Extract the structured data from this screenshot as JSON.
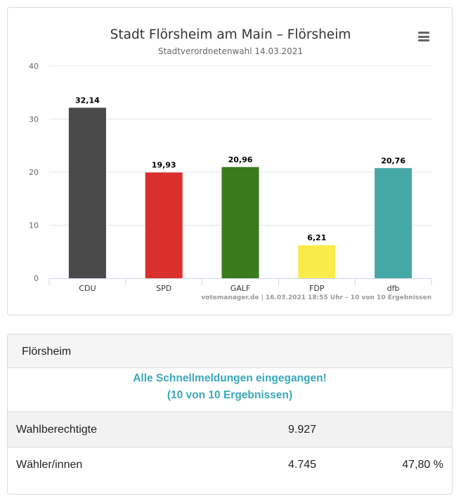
{
  "chart_data": {
    "type": "bar",
    "title": "Stadt Flörsheim am Main – Flörsheim",
    "subtitle": "Stadtverordnetenwahl 14.03.2021",
    "categories": [
      "CDU",
      "SPD",
      "GALF",
      "FDP",
      "dfb"
    ],
    "values": [
      32.14,
      19.93,
      20.96,
      6.21,
      20.76
    ],
    "data_labels": [
      "32,14",
      "19,93",
      "20,96",
      "6,21",
      "20,76"
    ],
    "colors": [
      "#4a4a4a",
      "#d9302c",
      "#387a1c",
      "#f9ec4a",
      "#46a8a4"
    ],
    "ylim": [
      0,
      40
    ],
    "yticks": [
      0,
      10,
      20,
      30,
      40
    ],
    "xlabel": "",
    "ylabel": "",
    "grid": true,
    "credits": "votemanager.de | 16.03.2021 18:55 Uhr – 10 von 10 Ergebnissen"
  },
  "results": {
    "header": "Flörsheim",
    "status_line1": "Alle Schnellmeldungen eingegangen!",
    "status_line2": "(10 von 10 Ergebnissen)",
    "rows": [
      {
        "label": "Wahlberechtigte",
        "count": "9.927",
        "pct": ""
      },
      {
        "label": "Wähler/innen",
        "count": "4.745",
        "pct": "47,80 %"
      }
    ]
  },
  "icons": {
    "menu": "hamburger-menu-icon"
  }
}
